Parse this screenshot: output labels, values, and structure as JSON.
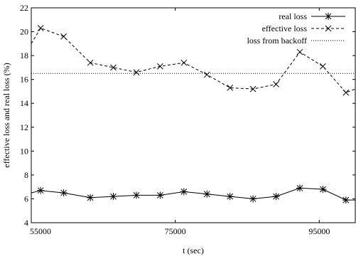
{
  "chart_data": {
    "type": "line",
    "title": "",
    "xlabel": "t (sec)",
    "ylabel": "effective loss and  real loss (%)",
    "xlim": [
      55000,
      100000
    ],
    "ylim": [
      4,
      22
    ],
    "x_ticks": [
      55000,
      75000,
      95000
    ],
    "x_tick_labels": [
      "55000",
      "75000",
      "95000"
    ],
    "y_ticks": [
      4,
      6,
      8,
      10,
      12,
      14,
      16,
      18,
      20,
      22
    ],
    "y_tick_labels": [
      "4",
      "6",
      "8",
      "10",
      "12",
      "14",
      "16",
      "18",
      "20",
      "22"
    ],
    "grid": false,
    "legend_position": "top-right",
    "series": [
      {
        "name": "real loss",
        "line_style": "solid",
        "marker": "asterisk",
        "x": [
          55000,
          56300,
          59500,
          63200,
          66400,
          69600,
          72900,
          76200,
          79400,
          82600,
          85800,
          89000,
          92300,
          95500,
          98700,
          100000
        ],
        "y": [
          6.5,
          6.7,
          6.5,
          6.1,
          6.2,
          6.3,
          6.3,
          6.6,
          6.4,
          6.2,
          6.0,
          6.2,
          6.9,
          6.8,
          5.9,
          5.9
        ]
      },
      {
        "name": "effective loss",
        "line_style": "dashed",
        "marker": "x",
        "x": [
          55000,
          56300,
          59500,
          63200,
          66400,
          69600,
          72900,
          76200,
          79400,
          82600,
          85800,
          89000,
          92300,
          95500,
          98700,
          100000
        ],
        "y": [
          19.0,
          20.3,
          19.6,
          17.4,
          17.0,
          16.6,
          17.1,
          17.4,
          16.4,
          15.3,
          15.2,
          15.6,
          18.3,
          17.1,
          14.9,
          15.2
        ]
      },
      {
        "name": "loss from backoff",
        "line_style": "dotted",
        "marker": "none",
        "x": [
          55000,
          100000
        ],
        "y": [
          16.5,
          16.5
        ]
      }
    ]
  }
}
